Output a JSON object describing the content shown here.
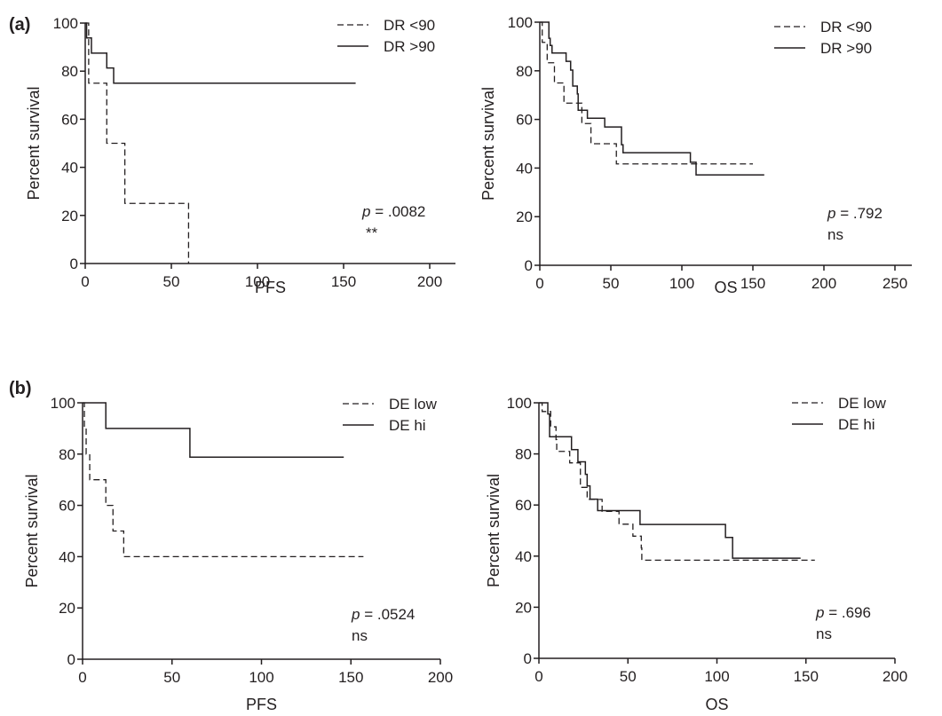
{
  "chart_data": [
    {
      "type": "line",
      "panel": "(a)",
      "title": "",
      "xlabel": "PFS",
      "ylabel": "Percent survival",
      "xlim": [
        0,
        215
      ],
      "ylim": [
        0,
        100
      ],
      "xticks": [
        0,
        50,
        100,
        150,
        200
      ],
      "yticks": [
        0,
        20,
        40,
        60,
        80,
        100
      ],
      "legend_position": "top-right",
      "annotation": {
        "p_label": "p",
        "p_value": " = .0082",
        "significance": "**"
      },
      "series": [
        {
          "name": "DR <90",
          "style": "dashed",
          "steps": [
            [
              0,
              100
            ],
            [
              2,
              75
            ],
            [
              12.5,
              50
            ],
            [
              23,
              25
            ],
            [
              60,
              0
            ]
          ],
          "end": 60
        },
        {
          "name": "DR >90",
          "style": "solid",
          "steps": [
            [
              0,
              100
            ],
            [
              0.8,
              93.8
            ],
            [
              3.6,
              87.5
            ],
            [
              12.5,
              81.3
            ],
            [
              16.5,
              75
            ]
          ],
          "end": 157
        }
      ]
    },
    {
      "type": "line",
      "panel": "",
      "title": "",
      "xlabel": "OS",
      "ylabel": "Percent survival",
      "xlim": [
        0,
        262
      ],
      "ylim": [
        0,
        100
      ],
      "xticks": [
        0,
        50,
        100,
        150,
        200,
        250
      ],
      "yticks": [
        0,
        20,
        40,
        60,
        80,
        100
      ],
      "legend_position": "top-right",
      "annotation": {
        "p_label": "p",
        "p_value": " = .792",
        "significance": "ns"
      },
      "series": [
        {
          "name": "DR <90",
          "style": "dashed",
          "steps": [
            [
              0,
              100
            ],
            [
              1.7,
              91.7
            ],
            [
              5.2,
              83.3
            ],
            [
              10.3,
              75
            ],
            [
              17,
              66.7
            ],
            [
              29.6,
              58.3
            ],
            [
              36,
              50
            ],
            [
              53.9,
              41.7
            ]
          ],
          "end": 150
        },
        {
          "name": "DR >90",
          "style": "solid",
          "steps": [
            [
              0,
              100
            ],
            [
              6.4,
              93.4
            ],
            [
              7.3,
              90.4
            ],
            [
              8.6,
              87.3
            ],
            [
              18.5,
              83.9
            ],
            [
              21.7,
              80.3
            ],
            [
              23.2,
              73.7
            ],
            [
              26.4,
              70.5
            ],
            [
              27,
              63.8
            ],
            [
              33.5,
              60.5
            ],
            [
              45.7,
              56.9
            ],
            [
              57.5,
              49.6
            ],
            [
              58.6,
              46.3
            ],
            [
              106,
              42.4
            ],
            [
              110,
              37.2
            ]
          ],
          "end": 158
        }
      ]
    },
    {
      "type": "line",
      "panel": "(b)",
      "title": "",
      "xlabel": "PFS",
      "ylabel": "Percent survival",
      "xlim": [
        0,
        200
      ],
      "ylim": [
        0,
        100
      ],
      "xticks": [
        0,
        50,
        100,
        150,
        200
      ],
      "yticks": [
        0,
        20,
        40,
        60,
        80,
        100
      ],
      "legend_position": "top-right",
      "annotation": {
        "p_label": "p",
        "p_value": " = .0524",
        "significance": "ns"
      },
      "series": [
        {
          "name": "DE low",
          "style": "dashed",
          "steps": [
            [
              0,
              100
            ],
            [
              1,
              90
            ],
            [
              2,
              80
            ],
            [
              4,
              70
            ],
            [
              13,
              60
            ],
            [
              17,
              50
            ],
            [
              23,
              40
            ]
          ],
          "end": 157
        },
        {
          "name": "DE hi",
          "style": "solid",
          "steps": [
            [
              0,
              100
            ],
            [
              13,
              90
            ],
            [
              60,
              78.8
            ]
          ],
          "end": 146
        }
      ]
    },
    {
      "type": "line",
      "panel": "",
      "title": "",
      "xlabel": "OS",
      "ylabel": "Percent survival",
      "xlim": [
        0,
        200
      ],
      "ylim": [
        0,
        100
      ],
      "xticks": [
        0,
        50,
        100,
        150,
        200
      ],
      "yticks": [
        0,
        20,
        40,
        60,
        80,
        100
      ],
      "legend_position": "top-right",
      "annotation": {
        "p_label": "p",
        "p_value": " = .696",
        "significance": "ns"
      },
      "series": [
        {
          "name": "DE low",
          "style": "dashed",
          "steps": [
            [
              0,
              100
            ],
            [
              1.8,
              96.6
            ],
            [
              6.6,
              90.6
            ],
            [
              9.6,
              85.6
            ],
            [
              10,
              81
            ],
            [
              17.3,
              76.5
            ],
            [
              23.3,
              66.9
            ],
            [
              27.1,
              62.2
            ],
            [
              35.5,
              57.5
            ],
            [
              45,
              52.5
            ],
            [
              52.8,
              47.8
            ],
            [
              57.5,
              43.2
            ],
            [
              57.8,
              38.4
            ]
          ],
          "end": 155
        },
        {
          "name": "DE hi",
          "style": "solid",
          "steps": [
            [
              0,
              100
            ],
            [
              5,
              95.6
            ],
            [
              6,
              86.7
            ],
            [
              18.3,
              81.7
            ],
            [
              21.9,
              76.9
            ],
            [
              26.1,
              72
            ],
            [
              27.1,
              67.5
            ],
            [
              28.7,
              62.3
            ],
            [
              33,
              57.8
            ],
            [
              56.8,
              52.4
            ],
            [
              104.8,
              47.3
            ],
            [
              108.8,
              39.2
            ]
          ],
          "end": 147
        }
      ]
    }
  ]
}
